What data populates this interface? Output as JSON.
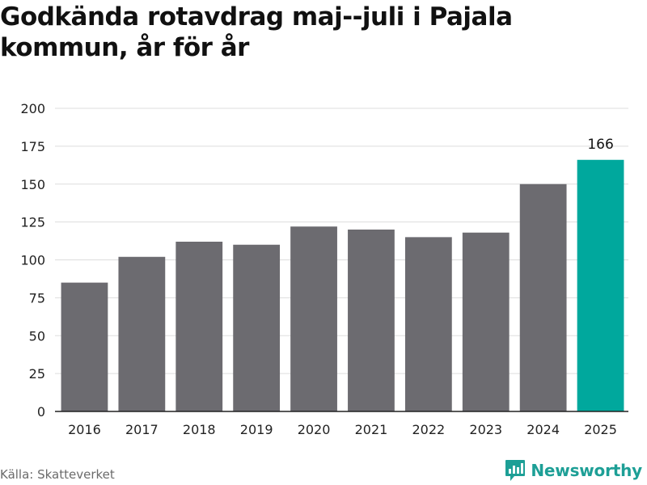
{
  "title": "Godkända rotavdrag maj--juli i Pajala kommun, år för år",
  "source": "Källa: Skatteverket",
  "brand": {
    "name": "Newsworthy",
    "icon": "newsworthy-logo-icon",
    "color": "#1d9f96"
  },
  "colors": {
    "bar": "#6c6b70",
    "highlight": "#00a89d",
    "grid": "#dddddd",
    "axis": "#222222"
  },
  "chart_data": {
    "type": "bar",
    "categories": [
      "2016",
      "2017",
      "2018",
      "2019",
      "2020",
      "2021",
      "2022",
      "2023",
      "2024",
      "2025"
    ],
    "values": [
      85,
      102,
      112,
      110,
      122,
      120,
      115,
      118,
      150,
      166
    ],
    "highlight_index": 9,
    "data_labels": [
      {
        "index": 9,
        "text": "166"
      }
    ],
    "y_ticks": [
      0,
      25,
      50,
      75,
      100,
      125,
      150,
      175,
      200
    ],
    "ylim": [
      0,
      200
    ],
    "grid": true,
    "legend": "none",
    "xlabel": "",
    "ylabel": ""
  }
}
